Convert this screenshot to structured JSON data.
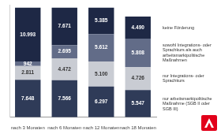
{
  "chart_data": {
    "type": "bar",
    "stacked": true,
    "data_labels": true,
    "tick_labels": "x",
    "grid": false,
    "legend": "right",
    "categories": [
      "nach 3 Monaten",
      "nach 6 Monaten",
      "nach 12 Monaten",
      "nach 18 Monaten"
    ],
    "ylim": [
      0,
      23000
    ],
    "series": [
      {
        "name": "nur arbeitsmarktpolitische Maßnahme (SGB II oder SGB III)",
        "color": "#2f3b58",
        "values": [
          7648,
          7566,
          6297,
          5547
        ],
        "value_labels": [
          "7.648",
          "7.566",
          "6.297",
          "5.547"
        ]
      },
      {
        "name": "nur Integrations- oder Sprachkurs",
        "color": "#c9ccd3",
        "values": [
          2811,
          4472,
          5100,
          4726
        ],
        "value_labels": [
          "2.811",
          "4.472",
          "5.100",
          "4.726"
        ]
      },
      {
        "name": "sowohl Integrations- oder Sprachkurs als auch arbeitsmarktpolitische Maßnahmen",
        "color": "#626c88",
        "values": [
          942,
          2695,
          5612,
          5808
        ],
        "value_labels": [
          "942",
          "2.695",
          "5.612",
          "5.808"
        ]
      },
      {
        "name": "keine Förderung",
        "color": "#1e2845",
        "values": [
          10993,
          7671,
          5385,
          4490
        ],
        "value_labels": [
          "10.993",
          "7.671",
          "5.385",
          "4.490"
        ]
      }
    ]
  }
}
